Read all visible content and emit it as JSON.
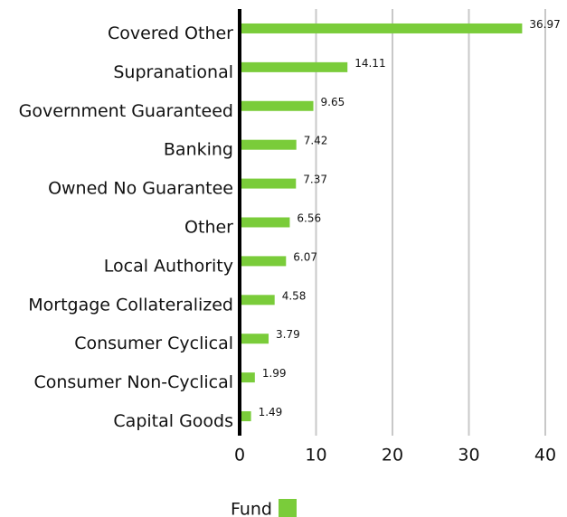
{
  "chart_data": {
    "type": "barh",
    "categories": [
      "Covered Other",
      "Supranational",
      "Government Guaranteed",
      "Banking",
      "Owned No Guarantee",
      "Other",
      "Local Authority",
      "Mortgage Collateralized",
      "Consumer Cyclical",
      "Consumer Non-Cyclical",
      "Capital Goods"
    ],
    "series": [
      {
        "name": "Fund",
        "color": "#7acc3a",
        "values": [
          36.97,
          14.11,
          9.65,
          7.42,
          7.37,
          6.56,
          6.07,
          4.58,
          3.79,
          1.99,
          1.49
        ]
      }
    ],
    "xlim": [
      0,
      40
    ],
    "xticks": [
      0,
      10,
      20,
      30,
      40
    ],
    "grid": true,
    "legend": "bottom"
  }
}
